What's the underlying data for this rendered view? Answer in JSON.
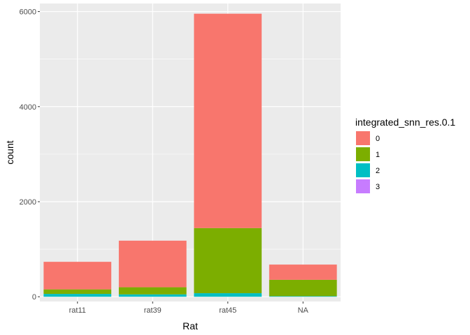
{
  "chart_data": {
    "type": "bar",
    "stacked": true,
    "categories": [
      "rat11",
      "rat39",
      "rat45",
      "NA"
    ],
    "series": [
      {
        "name": "0",
        "color": "#F8766D",
        "values": [
          580,
          980,
          4510,
          320
        ]
      },
      {
        "name": "1",
        "color": "#7CAE00",
        "values": [
          95,
          150,
          1370,
          345
        ]
      },
      {
        "name": "2",
        "color": "#00BFC4",
        "values": [
          60,
          50,
          75,
          12
        ]
      },
      {
        "name": "3",
        "color": "#C77CFF",
        "values": [
          0,
          0,
          0,
          0
        ]
      }
    ],
    "xlabel": "Rat",
    "ylabel": "count",
    "ylim": [
      -100,
      6170
    ],
    "yticks": [
      0,
      2000,
      4000,
      6000
    ],
    "ytick_labels": [
      "0",
      "2000",
      "4000",
      "6000"
    ],
    "legend_title": "integrated_snn_res.0.1",
    "legend_position": "right",
    "grid": true,
    "panel_background": "#EBEBEB"
  }
}
